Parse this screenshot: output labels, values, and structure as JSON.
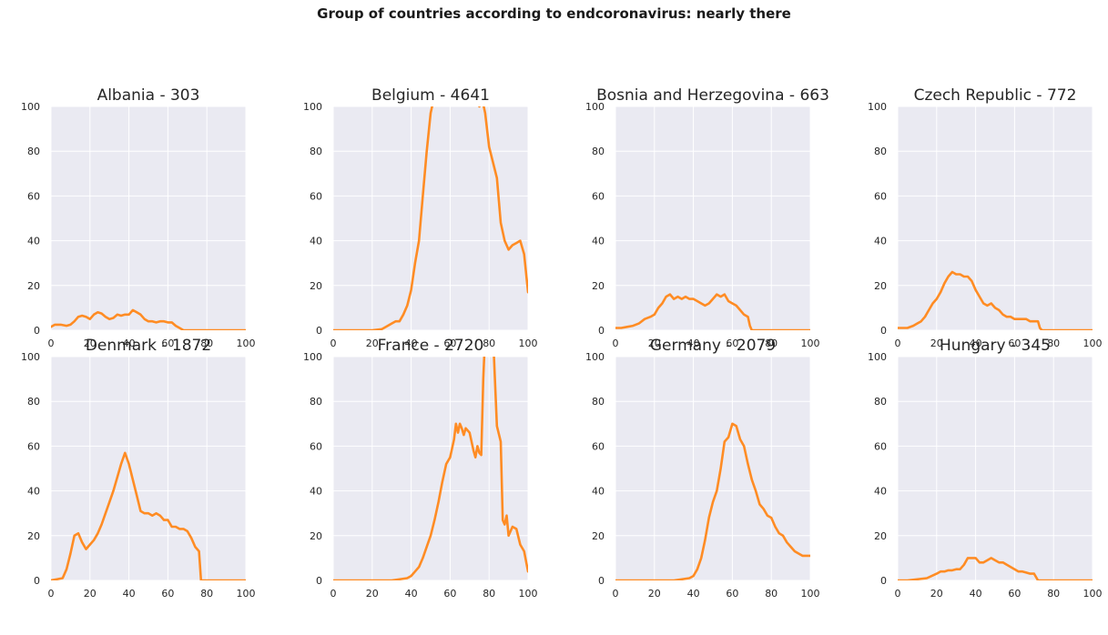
{
  "title": "Group of countries according to endcoronavirus: nearly there",
  "colors": {
    "line": "#ff8c24",
    "panel": "#eaeaf2",
    "grid": "#ffffff"
  },
  "chart_data": [
    {
      "type": "line",
      "title": "Albania - 303",
      "xlim": [
        0,
        100
      ],
      "ylim": [
        0,
        100
      ],
      "xticks": [
        0,
        20,
        40,
        60,
        80,
        100
      ],
      "yticks": [
        0,
        20,
        40,
        60,
        80,
        100
      ],
      "grid": true,
      "x": [
        0,
        2,
        5,
        8,
        10,
        12,
        14,
        16,
        18,
        20,
        22,
        24,
        26,
        28,
        30,
        32,
        34,
        36,
        38,
        40,
        42,
        44,
        46,
        48,
        50,
        52,
        54,
        56,
        58,
        60,
        62,
        64,
        66,
        68,
        70,
        75,
        80,
        85,
        90,
        95,
        100
      ],
      "y": [
        1.5,
        2.5,
        2.5,
        2,
        2.5,
        4,
        6,
        6.5,
        6,
        5,
        7,
        8,
        7.5,
        6,
        5,
        5.5,
        7,
        6.5,
        7,
        7,
        9,
        8,
        7,
        5,
        4,
        4,
        3.5,
        4,
        4,
        3.5,
        3.5,
        2,
        1,
        0,
        0,
        0,
        0,
        0,
        0,
        0,
        0
      ]
    },
    {
      "type": "line",
      "title": "Belgium - 4641",
      "xlim": [
        0,
        100
      ],
      "ylim": [
        0,
        100
      ],
      "xticks": [
        0,
        20,
        40,
        60,
        80,
        100
      ],
      "yticks": [
        0,
        20,
        40,
        60,
        80,
        100
      ],
      "grid": true,
      "x": [
        0,
        10,
        20,
        25,
        28,
        30,
        32,
        34,
        36,
        38,
        40,
        42,
        44,
        46,
        48,
        50,
        52,
        54,
        56,
        60,
        65,
        70,
        75,
        76,
        77,
        78,
        80,
        82,
        84,
        86,
        88,
        90,
        92,
        94,
        96,
        98,
        100
      ],
      "y": [
        0,
        0,
        0,
        0.5,
        2,
        3,
        4,
        4,
        7,
        11,
        18,
        30,
        40,
        60,
        80,
        97,
        105,
        108,
        110,
        110,
        110,
        110,
        100,
        103,
        101,
        97,
        82,
        75,
        68,
        48,
        40,
        36,
        38,
        39,
        40,
        34,
        17
      ]
    },
    {
      "type": "line",
      "title": "Bosnia and Herzegovina - 663",
      "xlim": [
        0,
        100
      ],
      "ylim": [
        0,
        100
      ],
      "xticks": [
        0,
        20,
        40,
        60,
        80,
        100
      ],
      "yticks": [
        0,
        20,
        40,
        60,
        80,
        100
      ],
      "grid": true,
      "x": [
        0,
        3,
        6,
        9,
        12,
        15,
        18,
        20,
        22,
        24,
        26,
        28,
        30,
        32,
        34,
        36,
        38,
        40,
        42,
        44,
        46,
        48,
        50,
        52,
        54,
        56,
        58,
        60,
        62,
        64,
        66,
        68,
        69,
        70,
        75,
        80,
        85,
        90,
        95,
        100
      ],
      "y": [
        1,
        1,
        1.5,
        2,
        3,
        5,
        6,
        7,
        10,
        12,
        15,
        16,
        14,
        15,
        14,
        15,
        14,
        14,
        13,
        12,
        11,
        12,
        14,
        16,
        15,
        16,
        13,
        12,
        11,
        9,
        7,
        6,
        2,
        0,
        0,
        0,
        0,
        0,
        0,
        0
      ]
    },
    {
      "type": "line",
      "title": "Czech Republic - 772",
      "xlim": [
        0,
        100
      ],
      "ylim": [
        0,
        100
      ],
      "xticks": [
        0,
        20,
        40,
        60,
        80,
        100
      ],
      "yticks": [
        0,
        20,
        40,
        60,
        80,
        100
      ],
      "grid": true,
      "x": [
        0,
        5,
        8,
        10,
        12,
        14,
        16,
        18,
        20,
        22,
        24,
        26,
        28,
        30,
        32,
        34,
        36,
        38,
        40,
        42,
        44,
        46,
        48,
        50,
        52,
        54,
        56,
        58,
        60,
        62,
        64,
        66,
        68,
        70,
        72,
        73,
        74,
        80,
        85,
        90,
        95,
        100
      ],
      "y": [
        1,
        1,
        2,
        3,
        4,
        6,
        9,
        12,
        14,
        17,
        21,
        24,
        26,
        25,
        25,
        24,
        24,
        22,
        18,
        15,
        12,
        11,
        12,
        10,
        9,
        7,
        6,
        6,
        5,
        5,
        5,
        5,
        4,
        4,
        4,
        1,
        0,
        0,
        0,
        0,
        0,
        0
      ]
    },
    {
      "type": "line",
      "title": "Denmark - 1872",
      "xlim": [
        0,
        100
      ],
      "ylim": [
        0,
        100
      ],
      "xticks": [
        0,
        20,
        40,
        60,
        80,
        100
      ],
      "yticks": [
        0,
        20,
        40,
        60,
        80,
        100
      ],
      "grid": true,
      "x": [
        0,
        3,
        6,
        8,
        10,
        12,
        14,
        16,
        18,
        20,
        22,
        24,
        26,
        28,
        30,
        32,
        34,
        36,
        38,
        40,
        42,
        44,
        46,
        48,
        50,
        52,
        54,
        56,
        58,
        60,
        62,
        64,
        66,
        68,
        70,
        72,
        74,
        76,
        77,
        78,
        80,
        85,
        90,
        95,
        100
      ],
      "y": [
        0,
        0.5,
        1,
        5,
        12,
        20,
        21,
        17,
        14,
        16,
        18,
        21,
        25,
        30,
        35,
        40,
        46,
        52,
        57,
        52,
        45,
        38,
        31,
        30,
        30,
        29,
        30,
        29,
        27,
        27,
        24,
        24,
        23,
        23,
        22,
        19,
        15,
        13,
        0,
        0,
        0,
        0,
        0,
        0,
        0
      ]
    },
    {
      "type": "line",
      "title": "France - 2720",
      "xlim": [
        0,
        100
      ],
      "ylim": [
        0,
        100
      ],
      "xticks": [
        0,
        20,
        40,
        60,
        80,
        100
      ],
      "yticks": [
        0,
        20,
        40,
        60,
        80,
        100
      ],
      "grid": true,
      "x": [
        0,
        10,
        20,
        30,
        34,
        38,
        40,
        42,
        44,
        46,
        48,
        50,
        52,
        54,
        56,
        58,
        60,
        62,
        63,
        64,
        65,
        66,
        67,
        68,
        70,
        72,
        73,
        74,
        75,
        76,
        77,
        78,
        79,
        80,
        81,
        82,
        84,
        86,
        87,
        88,
        89,
        90,
        92,
        94,
        96,
        98,
        100
      ],
      "y": [
        0,
        0,
        0,
        0,
        0.5,
        1,
        2,
        4,
        6,
        10,
        15,
        20,
        27,
        35,
        44,
        52,
        55,
        63,
        70,
        66,
        70,
        68,
        65,
        68,
        66,
        58,
        55,
        60,
        57,
        56,
        90,
        110,
        110,
        110,
        110,
        110,
        69,
        62,
        27,
        25,
        29,
        20,
        24,
        23,
        16,
        13,
        4
      ]
    },
    {
      "type": "line",
      "title": "Germany - 2079",
      "xlim": [
        0,
        100
      ],
      "ylim": [
        0,
        100
      ],
      "xticks": [
        0,
        20,
        40,
        60,
        80,
        100
      ],
      "yticks": [
        0,
        20,
        40,
        60,
        80,
        100
      ],
      "grid": true,
      "x": [
        0,
        10,
        20,
        30,
        34,
        38,
        40,
        42,
        44,
        46,
        48,
        50,
        52,
        54,
        56,
        58,
        60,
        62,
        64,
        66,
        68,
        70,
        72,
        74,
        76,
        78,
        80,
        82,
        84,
        86,
        88,
        90,
        92,
        94,
        96,
        98,
        100
      ],
      "y": [
        0,
        0,
        0,
        0,
        0.5,
        1,
        2,
        5,
        10,
        18,
        28,
        35,
        40,
        50,
        62,
        64,
        70,
        69,
        63,
        60,
        52,
        45,
        40,
        34,
        32,
        29,
        28,
        24,
        21,
        20,
        17,
        15,
        13,
        12,
        11,
        11,
        11
      ]
    },
    {
      "type": "line",
      "title": "Hungary - 345",
      "xlim": [
        0,
        100
      ],
      "ylim": [
        0,
        100
      ],
      "xticks": [
        0,
        20,
        40,
        60,
        80,
        100
      ],
      "yticks": [
        0,
        20,
        40,
        60,
        80,
        100
      ],
      "grid": true,
      "x": [
        0,
        5,
        10,
        15,
        20,
        22,
        24,
        26,
        28,
        30,
        32,
        34,
        36,
        38,
        40,
        42,
        44,
        46,
        48,
        50,
        52,
        54,
        56,
        58,
        60,
        62,
        64,
        66,
        68,
        70,
        72,
        75,
        80,
        85,
        90,
        95,
        100
      ],
      "y": [
        0,
        0,
        0.5,
        1,
        3,
        4,
        4,
        4.5,
        4.5,
        5,
        5,
        7,
        10,
        10,
        10,
        8,
        8,
        9,
        10,
        9,
        8,
        8,
        7,
        6,
        5,
        4,
        4,
        3.5,
        3,
        3,
        0,
        0,
        0,
        0,
        0,
        0,
        0
      ]
    }
  ]
}
